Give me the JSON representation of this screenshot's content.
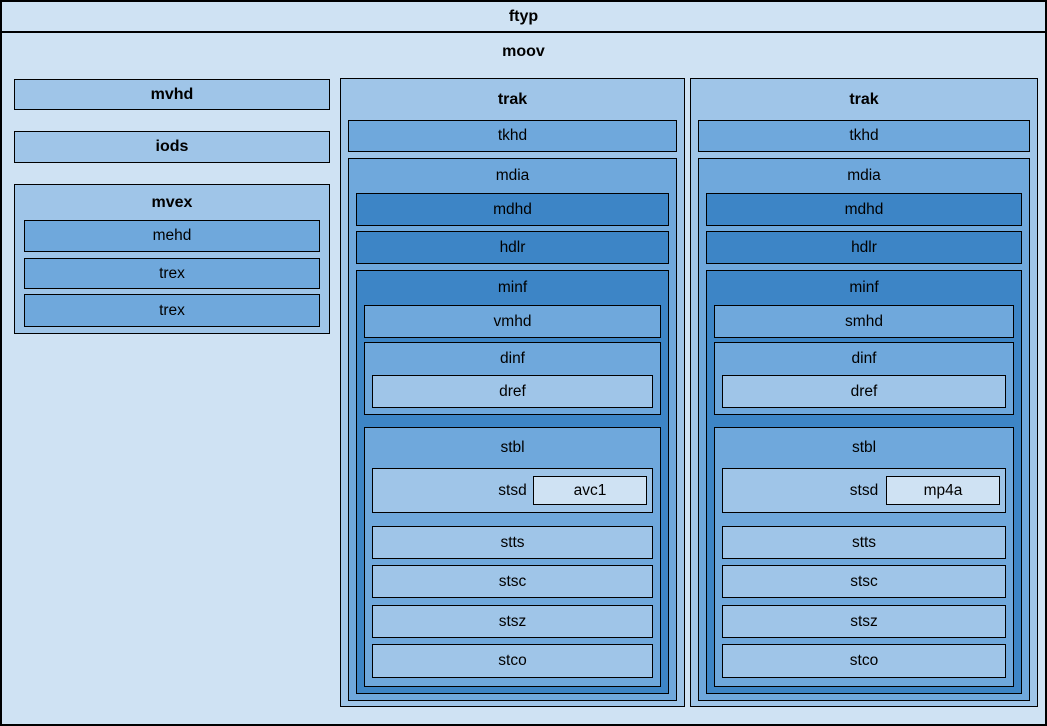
{
  "colors": {
    "level0": "#cfe2f3",
    "level1": "#9fc5e8",
    "level2": "#6fa8dc",
    "level3": "#3d85c6",
    "border": "#000000",
    "text": "#000000"
  },
  "ftyp": {
    "label": "ftyp"
  },
  "moov": {
    "label": "moov",
    "left_column": {
      "mvhd": {
        "label": "mvhd"
      },
      "iods": {
        "label": "iods"
      },
      "mvex": {
        "label": "mvex",
        "mehd": {
          "label": "mehd"
        },
        "trex1": {
          "label": "trex"
        },
        "trex2": {
          "label": "trex"
        }
      }
    },
    "traks": [
      {
        "label": "trak",
        "tkhd": {
          "label": "tkhd"
        },
        "mdia": {
          "label": "mdia",
          "mdhd": {
            "label": "mdhd"
          },
          "hdlr": {
            "label": "hdlr"
          },
          "minf": {
            "label": "minf",
            "media_header": {
              "label": "vmhd"
            },
            "dinf": {
              "label": "dinf",
              "dref": {
                "label": "dref"
              }
            },
            "stbl": {
              "label": "stbl",
              "stsd": {
                "label": "stsd",
                "sample_entry": {
                  "label": "avc1"
                }
              },
              "stts": {
                "label": "stts"
              },
              "stsc": {
                "label": "stsc"
              },
              "stsz": {
                "label": "stsz"
              },
              "stco": {
                "label": "stco"
              }
            }
          }
        }
      },
      {
        "label": "trak",
        "tkhd": {
          "label": "tkhd"
        },
        "mdia": {
          "label": "mdia",
          "mdhd": {
            "label": "mdhd"
          },
          "hdlr": {
            "label": "hdlr"
          },
          "minf": {
            "label": "minf",
            "media_header": {
              "label": "smhd"
            },
            "dinf": {
              "label": "dinf",
              "dref": {
                "label": "dref"
              }
            },
            "stbl": {
              "label": "stbl",
              "stsd": {
                "label": "stsd",
                "sample_entry": {
                  "label": "mp4a"
                }
              },
              "stts": {
                "label": "stts"
              },
              "stsc": {
                "label": "stsc"
              },
              "stsz": {
                "label": "stsz"
              },
              "stco": {
                "label": "stco"
              }
            }
          }
        }
      }
    ]
  }
}
